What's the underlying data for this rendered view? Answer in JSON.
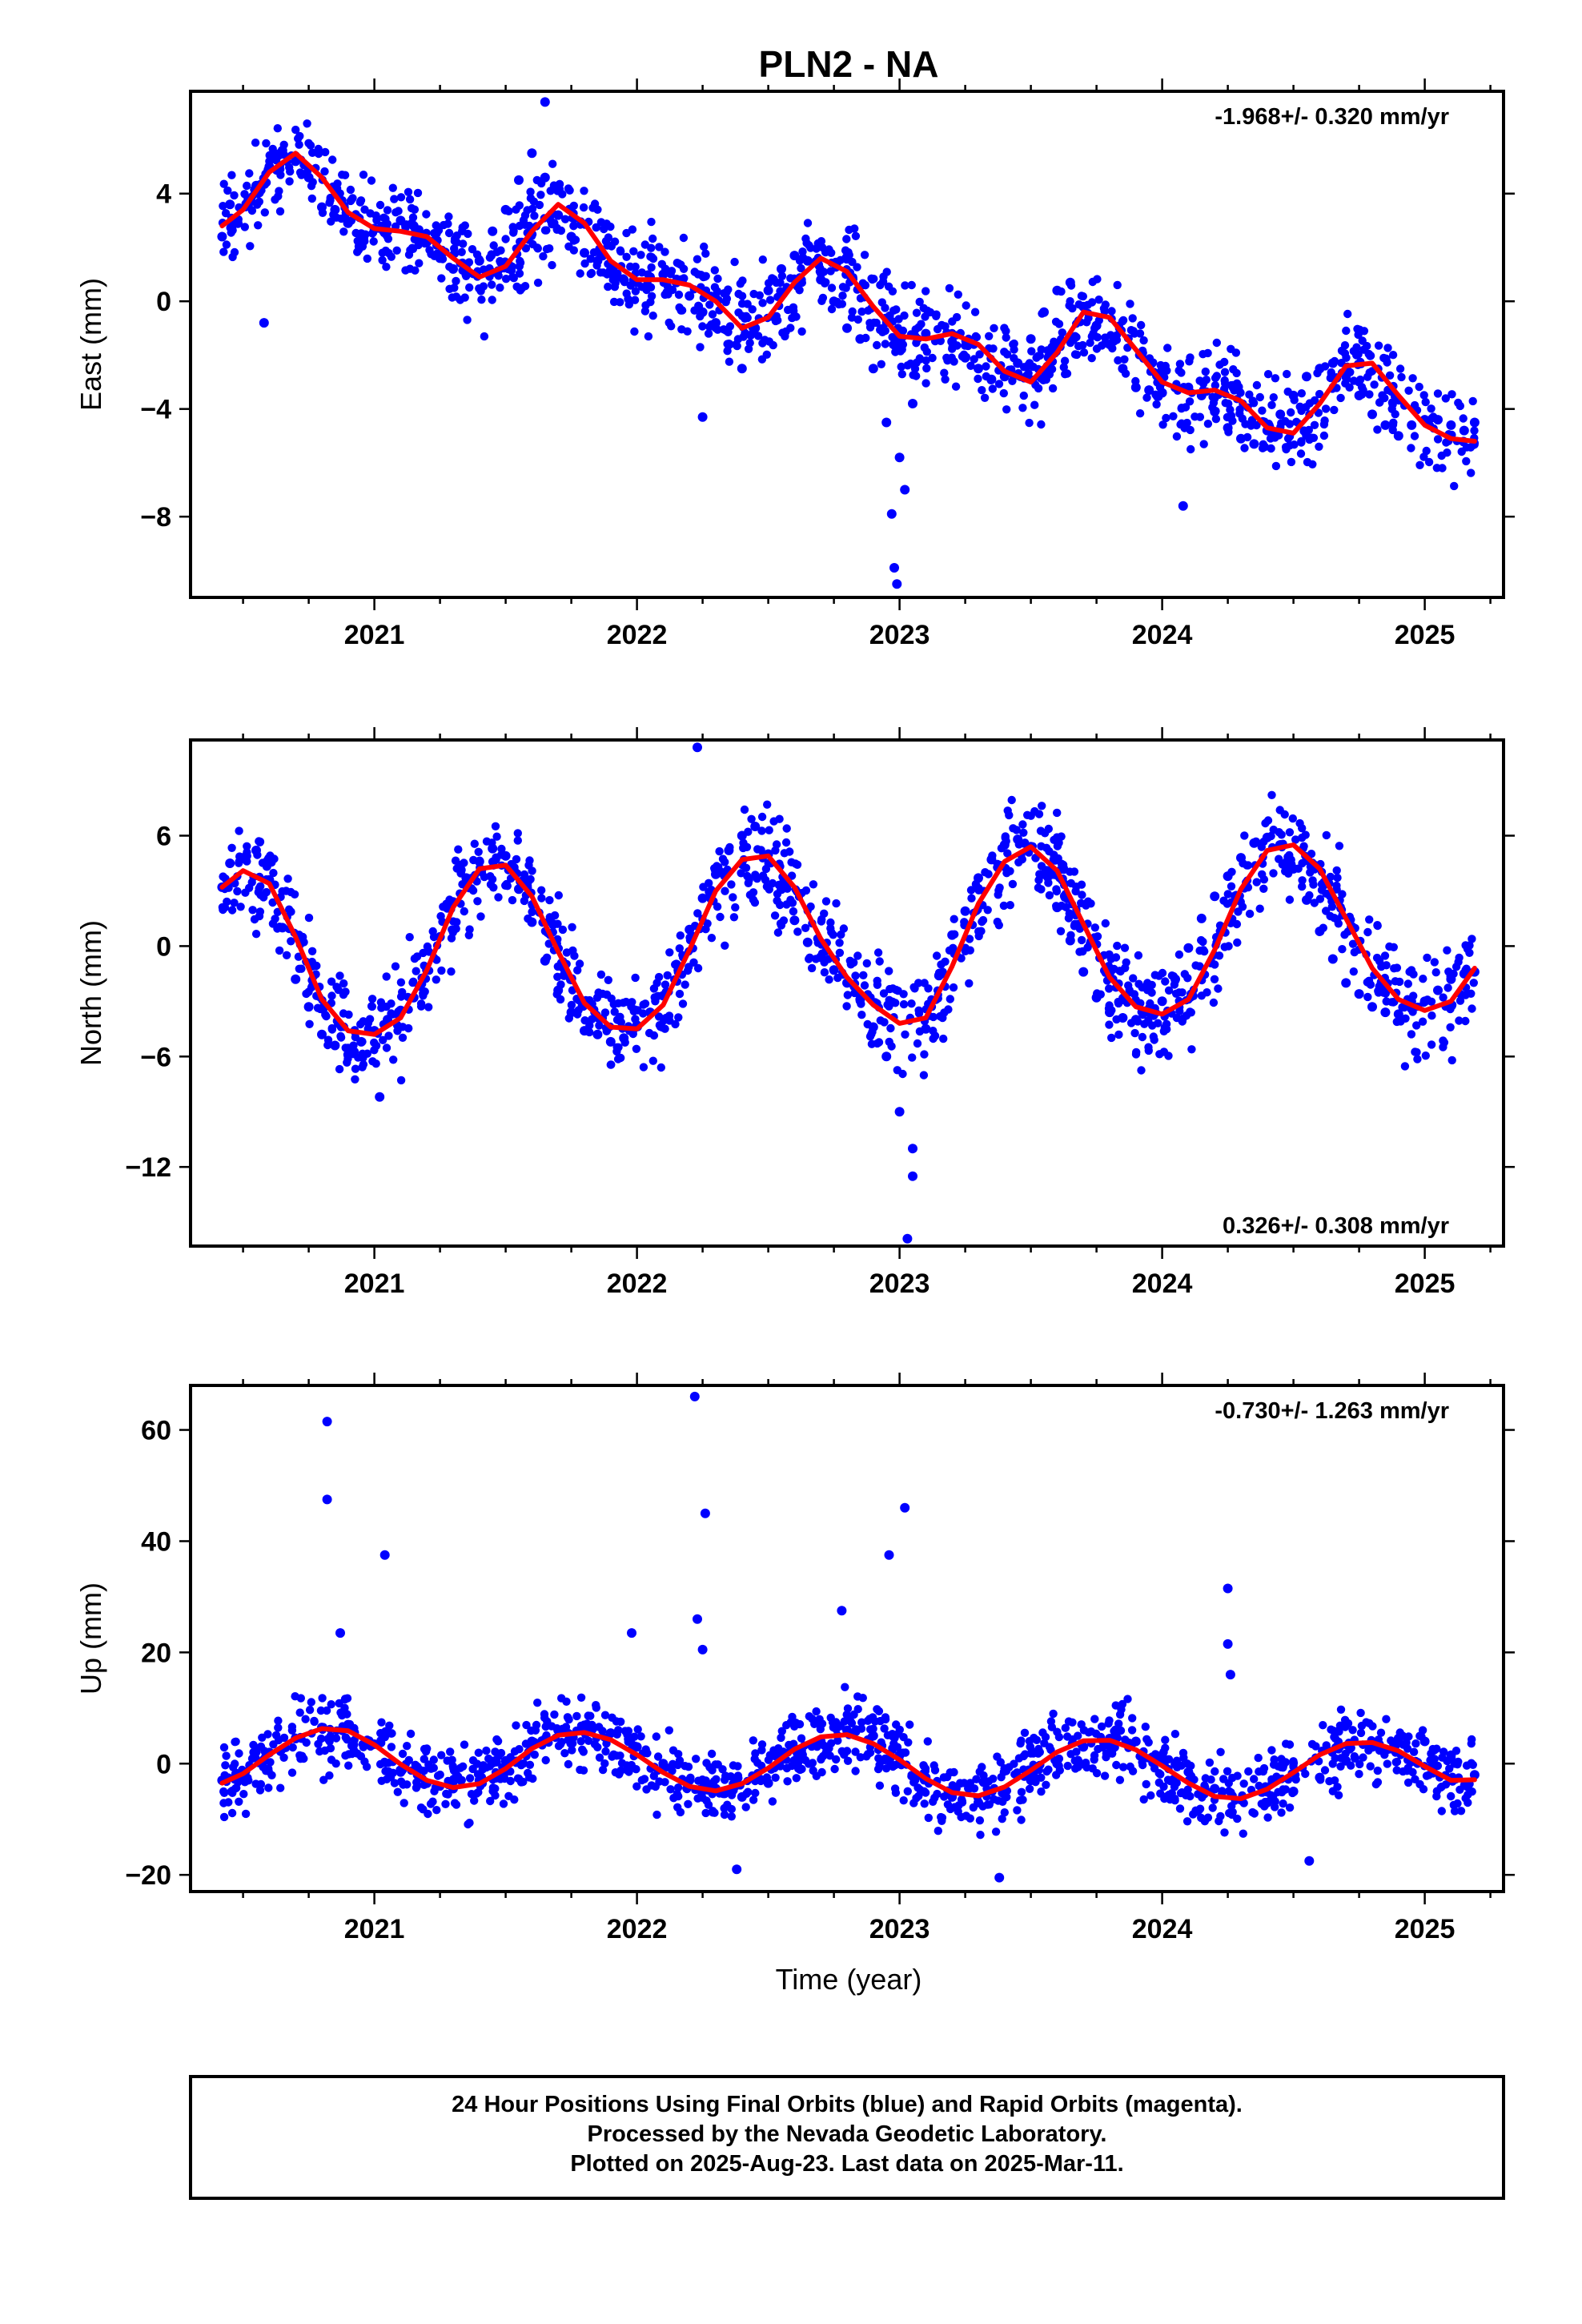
{
  "title": "PLN2 - NA",
  "xlabel": "Time (year)",
  "footer": {
    "lines": [
      "24 Hour Positions Using Final Orbits (blue) and Rapid Orbits (magenta).",
      "Processed by the Nevada Geodetic Laboratory.",
      "Plotted on 2025-Aug-23. Last data on 2025-Mar-11."
    ]
  },
  "colors": {
    "points": "#0000ff",
    "fit": "#ff0000",
    "frame": "#000000"
  },
  "chart_data": [
    {
      "type": "scatter",
      "ylabel": "East (mm)",
      "rate": "-1.968+/- 0.320 mm/yr",
      "xlim": [
        2020.3,
        2025.3
      ],
      "ylim": [
        -11,
        7.8
      ],
      "xticks": [
        2021,
        2022,
        2023,
        2024,
        2025
      ],
      "xtick_labels": [
        "2021",
        "2022",
        "2023",
        "2024",
        "2025"
      ],
      "yticks": [
        -8,
        -4,
        0,
        4
      ],
      "ytick_labels": [
        "−8",
        "−4",
        "0",
        "4"
      ],
      "series": [
        {
          "kind": "points",
          "x": [
            2020.42,
            2020.45,
            2020.48,
            2020.52,
            2020.55,
            2020.6,
            2020.65,
            2020.7,
            2020.75,
            2020.8,
            2020.85,
            2020.9,
            2020.95,
            2021.0,
            2021.05,
            2021.1,
            2021.15,
            2021.2,
            2021.25,
            2021.3,
            2021.35,
            2021.4,
            2021.45,
            2021.5,
            2021.55,
            2021.6,
            2021.65,
            2021.7,
            2021.75,
            2021.8,
            2021.85,
            2021.9,
            2021.95,
            2022.0,
            2022.05,
            2022.1,
            2022.15,
            2022.2,
            2022.25,
            2022.3,
            2022.35,
            2022.4,
            2022.45,
            2022.5,
            2022.55,
            2022.6,
            2022.65,
            2022.7,
            2022.75,
            2022.8,
            2022.85,
            2022.9,
            2022.95,
            2023.0,
            2023.05,
            2023.1,
            2023.15,
            2023.2,
            2023.25,
            2023.3,
            2023.35,
            2023.4,
            2023.45,
            2023.5,
            2023.55,
            2023.6,
            2023.65,
            2023.7,
            2023.75,
            2023.8,
            2023.85,
            2023.9,
            2023.95,
            2024.0,
            2024.05,
            2024.1,
            2024.15,
            2024.2,
            2024.25,
            2024.3,
            2024.35,
            2024.4,
            2024.45,
            2024.5,
            2024.55,
            2024.6,
            2024.65,
            2024.7,
            2024.75,
            2024.8,
            2024.85,
            2024.9,
            2024.95,
            2025.0,
            2025.05,
            2025.1,
            2025.15,
            2025.19,
            2020.58,
            2021.65,
            2022.25,
            2022.97,
            2022.98,
            2022.99,
            2023.02,
            2024.08
          ],
          "y": [
            2.4,
            3.6,
            2.9,
            3.8,
            4.3,
            5.0,
            5.6,
            5.2,
            4.6,
            3.5,
            3.4,
            2.9,
            2.5,
            2.7,
            2.6,
            3.0,
            2.8,
            2.2,
            1.6,
            1.2,
            1.0,
            1.5,
            2.6,
            3.4,
            4.5,
            5.5,
            4.6,
            3.2,
            2.4,
            1.8,
            1.5,
            1.1,
            0.8,
            0.7,
            0.9,
            1.0,
            0.7,
            0.2,
            -0.4,
            -0.8,
            -1.6,
            -2.5,
            -1.0,
            0.4,
            1.2,
            1.7,
            1.5,
            0.8,
            0.0,
            -1.0,
            -1.4,
            -2.5,
            -4.5,
            -5.8,
            -3.8,
            -1.2,
            -1.4,
            -1.5,
            -2.1,
            -2.5,
            -2.9,
            -2.8,
            -2.3,
            -1.4,
            -0.4,
            0.4,
            0.7,
            -0.2,
            -0.9,
            -1.6,
            -2.5,
            -3.2,
            -3.3,
            -3.4,
            -3.2,
            -3.2,
            -3.5,
            -4.1,
            -4.7,
            -5.1,
            -5.3,
            -4.8,
            -4.2,
            -3.5,
            -2.8,
            -2.5,
            -2.3,
            -2.8,
            -3.5,
            -4.2,
            -4.6,
            -5.0,
            -4.6,
            -4.4,
            -4.4,
            -4.6,
            -4.8,
            -4.5,
            -0.8,
            7.4,
            -4.3,
            -7.9,
            -9.9,
            -10.5,
            -7.0,
            -7.6
          ]
        },
        {
          "kind": "fit",
          "x": [
            2020.42,
            2020.5,
            2020.6,
            2020.7,
            2020.8,
            2020.9,
            2021.0,
            2021.1,
            2021.2,
            2021.3,
            2021.4,
            2021.5,
            2021.6,
            2021.7,
            2021.8,
            2021.9,
            2022.0,
            2022.1,
            2022.2,
            2022.3,
            2022.4,
            2022.5,
            2022.6,
            2022.7,
            2022.8,
            2022.9,
            2023.0,
            2023.1,
            2023.2,
            2023.3,
            2023.4,
            2023.5,
            2023.6,
            2023.7,
            2023.8,
            2023.9,
            2024.0,
            2024.1,
            2024.2,
            2024.3,
            2024.4,
            2024.5,
            2024.6,
            2024.7,
            2024.8,
            2024.9,
            2025.0,
            2025.1,
            2025.19
          ],
          "y": [
            2.8,
            3.4,
            4.8,
            5.5,
            4.6,
            3.3,
            2.7,
            2.6,
            2.4,
            1.6,
            0.9,
            1.3,
            2.6,
            3.6,
            2.9,
            1.5,
            0.8,
            0.8,
            0.6,
            0.0,
            -1.0,
            -0.6,
            0.7,
            1.6,
            1.1,
            -0.2,
            -1.3,
            -1.4,
            -1.2,
            -1.6,
            -2.6,
            -3.0,
            -1.9,
            -0.4,
            -0.6,
            -1.8,
            -3.0,
            -3.4,
            -3.3,
            -3.7,
            -4.7,
            -4.9,
            -3.8,
            -2.4,
            -2.3,
            -3.5,
            -4.6,
            -5.1,
            -5.2
          ]
        }
      ]
    },
    {
      "type": "scatter",
      "ylabel": "North (mm)",
      "rate": "0.326+/- 0.308 mm/yr",
      "xlim": [
        2020.3,
        2025.3
      ],
      "ylim": [
        -16.3,
        11.2
      ],
      "xticks": [
        2021,
        2022,
        2023,
        2024,
        2025
      ],
      "xtick_labels": [
        "2021",
        "2022",
        "2023",
        "2024",
        "2025"
      ],
      "yticks": [
        -12,
        -6,
        0,
        6
      ],
      "ytick_labels": [
        "−12",
        "−6",
        "0",
        "6"
      ],
      "series": [
        {
          "kind": "points",
          "x": [
            2020.42,
            2020.45,
            2020.5,
            2020.55,
            2020.6,
            2020.65,
            2020.7,
            2020.75,
            2020.8,
            2020.85,
            2020.9,
            2020.95,
            2021.0,
            2021.05,
            2021.1,
            2021.15,
            2021.2,
            2021.25,
            2021.3,
            2021.35,
            2021.4,
            2021.45,
            2021.5,
            2021.55,
            2021.6,
            2021.65,
            2021.7,
            2021.75,
            2021.8,
            2021.85,
            2021.9,
            2021.95,
            2022.0,
            2022.05,
            2022.1,
            2022.15,
            2022.2,
            2022.25,
            2022.3,
            2022.35,
            2022.4,
            2022.45,
            2022.5,
            2022.55,
            2022.6,
            2022.65,
            2022.7,
            2022.75,
            2022.8,
            2022.85,
            2022.9,
            2022.95,
            2023.0,
            2023.05,
            2023.1,
            2023.15,
            2023.2,
            2023.25,
            2023.3,
            2023.35,
            2023.4,
            2023.45,
            2023.5,
            2023.55,
            2023.6,
            2023.65,
            2023.7,
            2023.75,
            2023.8,
            2023.85,
            2023.9,
            2023.95,
            2024.0,
            2024.05,
            2024.1,
            2024.15,
            2024.2,
            2024.25,
            2024.3,
            2024.35,
            2024.4,
            2024.45,
            2024.5,
            2024.55,
            2024.6,
            2024.65,
            2024.7,
            2024.75,
            2024.8,
            2024.85,
            2024.9,
            2024.95,
            2025.0,
            2025.05,
            2025.1,
            2025.15,
            2025.19,
            2022.23,
            2023.03,
            2023.05,
            2021.02
          ],
          "y": [
            3.2,
            4.5,
            4.8,
            5.2,
            3.6,
            1.0,
            -1.8,
            -3.3,
            -4.8,
            -5.4,
            -5.9,
            -5.2,
            -4.6,
            -4.0,
            -3.5,
            -2.8,
            -1.3,
            0.5,
            2.4,
            3.7,
            4.6,
            5.3,
            4.9,
            3.1,
            1.3,
            -0.8,
            -2.4,
            -3.6,
            -4.6,
            -4.8,
            -5.2,
            -5.0,
            -4.3,
            -3.6,
            -2.7,
            -1.0,
            0.9,
            2.6,
            3.9,
            5.2,
            6.0,
            6.5,
            5.0,
            3.1,
            1.4,
            0.2,
            -0.6,
            -1.3,
            -2.0,
            -2.9,
            -4.4,
            -6.0,
            -9.0,
            -11.0,
            -4.5,
            -1.6,
            0.6,
            1.9,
            3.7,
            4.7,
            5.5,
            5.8,
            5.4,
            3.9,
            2.1,
            0.3,
            -1.4,
            -2.8,
            -3.6,
            -3.9,
            -4.0,
            -3.6,
            -3.0,
            -1.8,
            -0.1,
            1.5,
            2.7,
            3.8,
            4.8,
            5.6,
            5.9,
            5.5,
            4.2,
            2.5,
            0.8,
            -0.7,
            -2.0,
            -2.6,
            -3.3,
            -3.6,
            -3.7,
            -3.4,
            -3.0,
            -2.4,
            -1.8,
            -1.5,
            -1.4,
            10.8,
            -15.9,
            -12.5,
            -8.2
          ]
        },
        {
          "kind": "fit",
          "x": [
            2020.42,
            2020.5,
            2020.6,
            2020.7,
            2020.8,
            2020.9,
            2021.0,
            2021.1,
            2021.2,
            2021.3,
            2021.4,
            2021.5,
            2021.6,
            2021.7,
            2021.8,
            2021.9,
            2022.0,
            2022.1,
            2022.2,
            2022.3,
            2022.4,
            2022.5,
            2022.6,
            2022.7,
            2022.8,
            2022.9,
            2023.0,
            2023.1,
            2023.2,
            2023.3,
            2023.4,
            2023.5,
            2023.6,
            2023.7,
            2023.8,
            2023.9,
            2024.0,
            2024.1,
            2024.2,
            2024.3,
            2024.4,
            2024.5,
            2024.6,
            2024.7,
            2024.8,
            2024.9,
            2025.0,
            2025.1,
            2025.19
          ],
          "y": [
            3.2,
            4.1,
            3.4,
            0.5,
            -2.9,
            -4.6,
            -4.8,
            -3.9,
            -1.3,
            2.1,
            4.2,
            4.4,
            2.7,
            -0.3,
            -3.1,
            -4.4,
            -4.5,
            -3.2,
            -0.2,
            3.0,
            4.7,
            4.9,
            3.2,
            0.4,
            -1.7,
            -3.2,
            -4.2,
            -3.9,
            -1.1,
            2.3,
            4.6,
            5.4,
            4.1,
            1.2,
            -1.7,
            -3.3,
            -3.7,
            -2.9,
            -0.2,
            3.1,
            5.2,
            5.5,
            4.2,
            1.5,
            -1.2,
            -2.9,
            -3.5,
            -3.0,
            -1.2
          ]
        }
      ]
    },
    {
      "type": "scatter",
      "ylabel": "Up (mm)",
      "rate": "-0.730+/- 1.263 mm/yr",
      "xlim": [
        2020.3,
        2025.3
      ],
      "ylim": [
        -23,
        68
      ],
      "xticks": [
        2021,
        2022,
        2023,
        2024,
        2025
      ],
      "xtick_labels": [
        "2021",
        "2022",
        "2023",
        "2024",
        "2025"
      ],
      "yticks": [
        -20,
        0,
        20,
        40,
        60
      ],
      "ytick_labels": [
        "−20",
        "0",
        "20",
        "40",
        "60"
      ],
      "series": [
        {
          "kind": "points",
          "x": [
            2020.42,
            2020.5,
            2020.6,
            2020.7,
            2020.8,
            2020.9,
            2021.0,
            2021.1,
            2021.2,
            2021.3,
            2021.4,
            2021.5,
            2021.6,
            2021.7,
            2021.8,
            2021.9,
            2022.0,
            2022.1,
            2022.2,
            2022.3,
            2022.4,
            2022.5,
            2022.6,
            2022.7,
            2022.8,
            2022.9,
            2023.0,
            2023.1,
            2023.2,
            2023.3,
            2023.4,
            2023.5,
            2023.6,
            2023.7,
            2023.8,
            2023.9,
            2024.0,
            2024.1,
            2024.2,
            2024.3,
            2024.4,
            2024.5,
            2024.6,
            2024.7,
            2024.8,
            2024.9,
            2025.0,
            2025.1,
            2025.19,
            2020.82,
            2020.82,
            2020.87,
            2021.04,
            2021.98,
            2022.22,
            2022.23,
            2022.25,
            2022.26,
            2022.38,
            2022.78,
            2022.96,
            2023.02,
            2023.38,
            2024.25,
            2024.25,
            2024.26,
            2024.56
          ],
          "y": [
            -3.0,
            -1.5,
            2.0,
            4.5,
            6.5,
            7.0,
            3.5,
            -1.5,
            -3.5,
            -4.5,
            -3.0,
            0.5,
            4.0,
            6.0,
            6.5,
            5.5,
            3.0,
            0.0,
            -3.0,
            -4.5,
            -6.0,
            -3.5,
            0.5,
            4.0,
            6.0,
            5.0,
            1.5,
            -2.5,
            -6.0,
            -7.0,
            -5.5,
            -3.0,
            0.0,
            3.0,
            4.5,
            4.0,
            1.5,
            -1.5,
            -4.5,
            -6.5,
            -7.0,
            -5.0,
            -2.5,
            0.5,
            3.0,
            4.5,
            4.0,
            1.5,
            -2.0,
            61.5,
            47.5,
            23.5,
            37.5,
            23.5,
            66.0,
            26.0,
            20.5,
            45.0,
            -19.0,
            27.5,
            37.5,
            46.0,
            -20.5,
            31.5,
            21.5,
            16.0,
            -17.5
          ]
        },
        {
          "kind": "fit",
          "x": [
            2020.42,
            2020.5,
            2020.6,
            2020.7,
            2020.8,
            2020.9,
            2021.0,
            2021.1,
            2021.2,
            2021.3,
            2021.4,
            2021.5,
            2021.6,
            2021.7,
            2021.8,
            2021.9,
            2022.0,
            2022.1,
            2022.2,
            2022.3,
            2022.4,
            2022.5,
            2022.6,
            2022.7,
            2022.8,
            2022.9,
            2023.0,
            2023.1,
            2023.2,
            2023.3,
            2023.4,
            2023.5,
            2023.6,
            2023.7,
            2023.8,
            2023.9,
            2024.0,
            2024.1,
            2024.2,
            2024.3,
            2024.4,
            2024.5,
            2024.6,
            2024.7,
            2024.8,
            2024.9,
            2025.0,
            2025.1,
            2025.19
          ],
          "y": [
            -3.5,
            -1.8,
            1.6,
            4.6,
            6.3,
            5.9,
            3.4,
            -0.1,
            -3.0,
            -4.3,
            -3.6,
            -0.9,
            2.7,
            5.1,
            5.6,
            4.3,
            1.6,
            -1.6,
            -4.1,
            -4.9,
            -3.6,
            -0.8,
            2.6,
            4.8,
            5.2,
            3.6,
            0.7,
            -2.7,
            -5.2,
            -5.8,
            -4.2,
            -1.2,
            2.1,
            4.1,
            4.2,
            2.5,
            -0.4,
            -3.5,
            -5.9,
            -6.3,
            -4.6,
            -1.6,
            1.6,
            3.6,
            3.8,
            2.3,
            -0.5,
            -3.0,
            -2.9
          ]
        }
      ]
    }
  ]
}
